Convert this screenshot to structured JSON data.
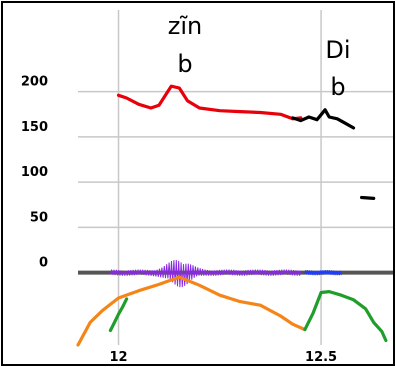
{
  "chart_data": {
    "type": "line",
    "title": "",
    "xlabel": "",
    "ylabel": "",
    "xlim": [
      11.9,
      12.68
    ],
    "ylim": [
      -80,
      235
    ],
    "grid": true,
    "x_ticks": [
      "12",
      "12.5"
    ],
    "y_ticks": [
      "200",
      "150",
      "100",
      "50",
      "0"
    ],
    "annotations": [
      {
        "id": "zin",
        "lines": [
          "zĩn",
          "b"
        ]
      },
      {
        "id": "di",
        "lines": [
          "Di",
          "b"
        ]
      }
    ],
    "series": [
      {
        "color": "#e8000b",
        "x": [
          12.0,
          12.02,
          12.05,
          12.08,
          12.1,
          12.13,
          12.15,
          12.17,
          12.2,
          12.25,
          12.3,
          12.35,
          12.4,
          12.43,
          12.45
        ],
        "y": [
          196,
          193,
          186,
          182,
          185,
          206,
          204,
          190,
          182,
          179,
          178,
          177,
          175,
          170,
          171
        ]
      },
      {
        "color": "#000000",
        "x": [
          12.43,
          12.45,
          12.47,
          12.49,
          12.51,
          12.52,
          12.54,
          12.56,
          12.58
        ],
        "y": [
          171,
          168,
          172,
          169,
          180,
          172,
          170,
          165,
          160
        ]
      },
      {
        "color": "#000000",
        "x": [
          12.6,
          12.63
        ],
        "y": [
          83,
          82
        ]
      },
      {
        "color": "#f58518",
        "x": [
          11.9,
          11.93,
          11.96,
          12.0,
          12.05,
          12.1,
          12.15,
          12.2,
          12.25,
          12.3,
          12.35,
          12.4,
          12.43,
          12.46
        ],
        "y": [
          -80,
          -55,
          -42,
          -28,
          -20,
          -13,
          -5,
          -14,
          -25,
          -32,
          -36,
          -48,
          -57,
          -63
        ]
      },
      {
        "color": "#1f9e2c",
        "x": [
          11.98,
          11.99,
          12.0,
          12.01,
          12.02
        ],
        "y": [
          -64,
          -55,
          -46,
          -38,
          -29
        ]
      },
      {
        "color": "#1f9e2c",
        "x": [
          12.46,
          12.48,
          12.5,
          12.52,
          12.55,
          12.58,
          12.61,
          12.63,
          12.65,
          12.66
        ],
        "y": [
          -63,
          -45,
          -22,
          -21,
          -25,
          -30,
          -40,
          -55,
          -65,
          -75
        ]
      },
      {
        "color": "#8a2be2",
        "x": [
          11.98,
          12.05,
          12.1,
          12.15,
          12.2,
          12.25,
          12.3,
          12.35,
          12.4,
          12.45
        ],
        "y": [
          0,
          0,
          0,
          0,
          0,
          0,
          0,
          0,
          0,
          0
        ]
      },
      {
        "color": "#1f3cff",
        "x": [
          12.46,
          12.5,
          12.55
        ],
        "y": [
          0,
          0,
          0
        ]
      }
    ],
    "baseline": {
      "color": "#555555",
      "y": 0
    }
  }
}
